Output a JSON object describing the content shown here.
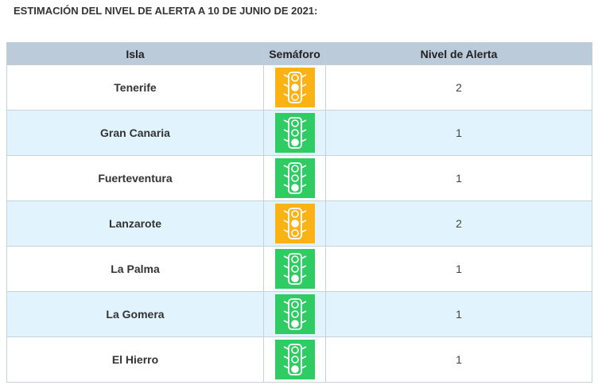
{
  "title": "ESTIMACIÓN DEL NIVEL DE ALERTA A 10 DE JUNIO DE 2021:",
  "table": {
    "columns": [
      "Isla",
      "Semáforo",
      "Nivel de Alerta"
    ],
    "rows": [
      {
        "isla": "Tenerife",
        "nivel": 2,
        "light_color": "#fbb215"
      },
      {
        "isla": "Gran Canaria",
        "nivel": 1,
        "light_color": "#2ecc62"
      },
      {
        "isla": "Fuerteventura",
        "nivel": 1,
        "light_color": "#2ecc62"
      },
      {
        "isla": "Lanzarote",
        "nivel": 2,
        "light_color": "#fbb215"
      },
      {
        "isla": "La Palma",
        "nivel": 1,
        "light_color": "#2ecc62"
      },
      {
        "isla": "La Gomera",
        "nivel": 1,
        "light_color": "#2ecc62"
      },
      {
        "isla": "El Hierro",
        "nivel": 1,
        "light_color": "#2ecc62"
      }
    ]
  }
}
